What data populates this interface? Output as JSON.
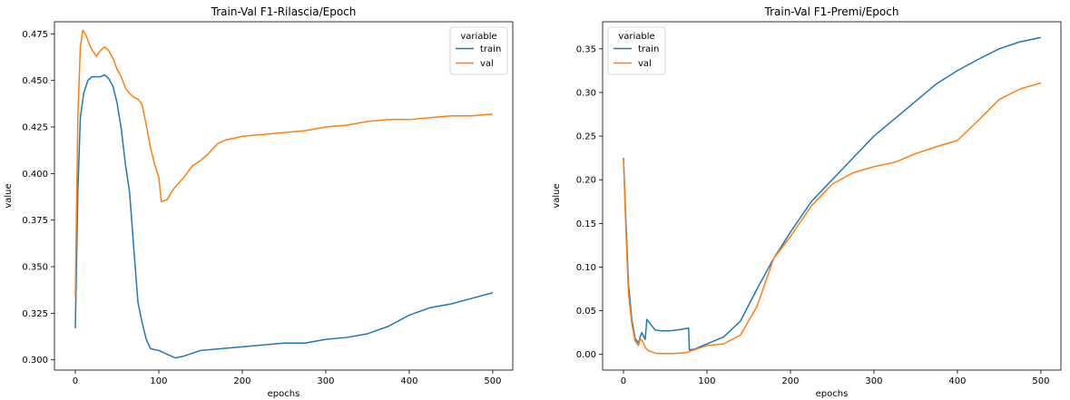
{
  "chart_data": [
    {
      "type": "line",
      "title": "Train-Val F1-Rilascia/Epoch",
      "xlabel": "epochs",
      "ylabel": "value",
      "xlim": [
        -25,
        524
      ],
      "ylim": [
        0.2945,
        0.4815
      ],
      "xticks": [
        0,
        100,
        200,
        300,
        400,
        500
      ],
      "xtick_labels": [
        "0",
        "100",
        "200",
        "300",
        "400",
        "500"
      ],
      "yticks": [
        0.3,
        0.325,
        0.35,
        0.375,
        0.4,
        0.425,
        0.45,
        0.475
      ],
      "ytick_labels": [
        "0.300",
        "0.325",
        "0.350",
        "0.375",
        "0.400",
        "0.425",
        "0.450",
        "0.475"
      ],
      "grid": false,
      "legend": {
        "title": "variable",
        "position": "top-right"
      },
      "series": [
        {
          "name": "train",
          "color": "#1f77b4",
          "points": [
            [
              0,
              0.317
            ],
            [
              3,
              0.39
            ],
            [
              6,
              0.43
            ],
            [
              10,
              0.443
            ],
            [
              15,
              0.45
            ],
            [
              20,
              0.452
            ],
            [
              30,
              0.452
            ],
            [
              35,
              0.453
            ],
            [
              40,
              0.451
            ],
            [
              45,
              0.447
            ],
            [
              50,
              0.438
            ],
            [
              55,
              0.424
            ],
            [
              60,
              0.405
            ],
            [
              65,
              0.39
            ],
            [
              70,
              0.36
            ],
            [
              75,
              0.331
            ],
            [
              80,
              0.32
            ],
            [
              85,
              0.311
            ],
            [
              90,
              0.306
            ],
            [
              100,
              0.305
            ],
            [
              110,
              0.303
            ],
            [
              120,
              0.301
            ],
            [
              130,
              0.302
            ],
            [
              150,
              0.305
            ],
            [
              175,
              0.306
            ],
            [
              200,
              0.307
            ],
            [
              250,
              0.309
            ],
            [
              275,
              0.309
            ],
            [
              300,
              0.311
            ],
            [
              325,
              0.312
            ],
            [
              350,
              0.314
            ],
            [
              375,
              0.318
            ],
            [
              400,
              0.324
            ],
            [
              425,
              0.328
            ],
            [
              450,
              0.33
            ],
            [
              475,
              0.333
            ],
            [
              500,
              0.336
            ]
          ]
        },
        {
          "name": "val",
          "color": "#ff7f0e",
          "points": [
            [
              0,
              0.334
            ],
            [
              3,
              0.43
            ],
            [
              6,
              0.468
            ],
            [
              9,
              0.477
            ],
            [
              13,
              0.474
            ],
            [
              18,
              0.468
            ],
            [
              25,
              0.463
            ],
            [
              30,
              0.466
            ],
            [
              35,
              0.468
            ],
            [
              40,
              0.466
            ],
            [
              45,
              0.462
            ],
            [
              50,
              0.456
            ],
            [
              55,
              0.452
            ],
            [
              60,
              0.446
            ],
            [
              65,
              0.443
            ],
            [
              70,
              0.441
            ],
            [
              75,
              0.44
            ],
            [
              80,
              0.437
            ],
            [
              85,
              0.426
            ],
            [
              90,
              0.414
            ],
            [
              95,
              0.405
            ],
            [
              100,
              0.398
            ],
            [
              103,
              0.385
            ],
            [
              110,
              0.386
            ],
            [
              115,
              0.39
            ],
            [
              120,
              0.393
            ],
            [
              130,
              0.398
            ],
            [
              140,
              0.404
            ],
            [
              150,
              0.407
            ],
            [
              160,
              0.411
            ],
            [
              170,
              0.416
            ],
            [
              180,
              0.418
            ],
            [
              190,
              0.419
            ],
            [
              200,
              0.42
            ],
            [
              225,
              0.421
            ],
            [
              250,
              0.422
            ],
            [
              275,
              0.423
            ],
            [
              300,
              0.425
            ],
            [
              325,
              0.426
            ],
            [
              350,
              0.428
            ],
            [
              375,
              0.429
            ],
            [
              400,
              0.429
            ],
            [
              425,
              0.43
            ],
            [
              450,
              0.431
            ],
            [
              475,
              0.431
            ],
            [
              500,
              0.432
            ]
          ]
        }
      ]
    },
    {
      "type": "line",
      "title": "Train-Val F1-Premi/Epoch",
      "xlabel": "epochs",
      "ylabel": "value",
      "xlim": [
        -25,
        524
      ],
      "ylim": [
        -0.018,
        0.381
      ],
      "xticks": [
        0,
        100,
        200,
        300,
        400,
        500
      ],
      "xtick_labels": [
        "0",
        "100",
        "200",
        "300",
        "400",
        "500"
      ],
      "yticks": [
        0.0,
        0.05,
        0.1,
        0.15,
        0.2,
        0.25,
        0.3,
        0.35
      ],
      "ytick_labels": [
        "0.00",
        "0.05",
        "0.10",
        "0.15",
        "0.20",
        "0.25",
        "0.30",
        "0.35"
      ],
      "grid": false,
      "legend": {
        "title": "variable",
        "position": "top-left"
      },
      "series": [
        {
          "name": "train",
          "color": "#1f77b4",
          "points": [
            [
              0,
              0.225
            ],
            [
              3,
              0.15
            ],
            [
              6,
              0.08
            ],
            [
              10,
              0.04
            ],
            [
              14,
              0.018
            ],
            [
              18,
              0.013
            ],
            [
              20,
              0.02
            ],
            [
              22,
              0.025
            ],
            [
              26,
              0.017
            ],
            [
              28,
              0.04
            ],
            [
              32,
              0.035
            ],
            [
              38,
              0.028
            ],
            [
              45,
              0.027
            ],
            [
              55,
              0.027
            ],
            [
              65,
              0.028
            ],
            [
              78,
              0.03
            ],
            [
              79,
              0.005
            ],
            [
              85,
              0.006
            ],
            [
              100,
              0.012
            ],
            [
              120,
              0.02
            ],
            [
              140,
              0.038
            ],
            [
              160,
              0.075
            ],
            [
              180,
              0.11
            ],
            [
              200,
              0.14
            ],
            [
              225,
              0.175
            ],
            [
              250,
              0.2
            ],
            [
              275,
              0.225
            ],
            [
              300,
              0.25
            ],
            [
              325,
              0.27
            ],
            [
              350,
              0.29
            ],
            [
              375,
              0.31
            ],
            [
              400,
              0.325
            ],
            [
              425,
              0.338
            ],
            [
              450,
              0.35
            ],
            [
              475,
              0.358
            ],
            [
              500,
              0.363
            ]
          ]
        },
        {
          "name": "val",
          "color": "#ff7f0e",
          "points": [
            [
              0,
              0.224
            ],
            [
              3,
              0.14
            ],
            [
              6,
              0.07
            ],
            [
              10,
              0.035
            ],
            [
              14,
              0.015
            ],
            [
              18,
              0.01
            ],
            [
              20,
              0.018
            ],
            [
              23,
              0.015
            ],
            [
              26,
              0.008
            ],
            [
              30,
              0.004
            ],
            [
              40,
              0.001
            ],
            [
              60,
              0.001
            ],
            [
              75,
              0.002
            ],
            [
              90,
              0.007
            ],
            [
              100,
              0.01
            ],
            [
              120,
              0.012
            ],
            [
              140,
              0.022
            ],
            [
              160,
              0.055
            ],
            [
              180,
              0.11
            ],
            [
              200,
              0.135
            ],
            [
              225,
              0.17
            ],
            [
              250,
              0.195
            ],
            [
              275,
              0.208
            ],
            [
              300,
              0.215
            ],
            [
              325,
              0.22
            ],
            [
              350,
              0.23
            ],
            [
              375,
              0.238
            ],
            [
              400,
              0.245
            ],
            [
              425,
              0.268
            ],
            [
              450,
              0.292
            ],
            [
              475,
              0.304
            ],
            [
              500,
              0.311
            ]
          ]
        }
      ]
    }
  ]
}
